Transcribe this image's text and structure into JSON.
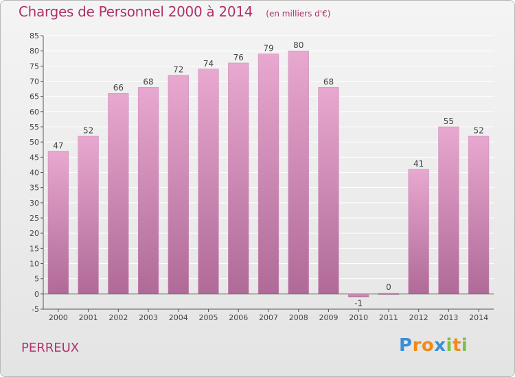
{
  "header": {
    "title": "Charges de Personnel 2000 à 2014",
    "subtitle": "(en milliers d'€)"
  },
  "footer": {
    "commune": "PERREUX",
    "logo_letters": [
      "P",
      "r",
      "o",
      "x",
      "i",
      "t",
      "i"
    ],
    "logo_colors": [
      "#3a8fd6",
      "#f08a1a",
      "#f08a1a",
      "#3a8fd6",
      "#7cc242",
      "#f08a1a",
      "#7cc242"
    ]
  },
  "chart_data": {
    "type": "bar",
    "categories": [
      "2000",
      "2001",
      "2002",
      "2003",
      "2004",
      "2005",
      "2006",
      "2007",
      "2008",
      "2009",
      "2010",
      "2011",
      "2012",
      "2013",
      "2014"
    ],
    "values": [
      47,
      52,
      66,
      68,
      72,
      74,
      76,
      79,
      80,
      68,
      -1,
      0,
      41,
      55,
      52
    ],
    "data_labels": [
      "47",
      "52",
      "66",
      "68",
      "72",
      "74",
      "76",
      "79",
      "80",
      "68",
      "-1",
      "0",
      "41",
      "55",
      "52"
    ],
    "ylim": [
      -5,
      85
    ],
    "yticks": [
      -5,
      0,
      5,
      10,
      15,
      20,
      25,
      30,
      35,
      40,
      45,
      50,
      55,
      60,
      65,
      70,
      75,
      80,
      85
    ],
    "grid": true,
    "colors": {
      "bar_top": "#e8a8cf",
      "bar_bottom": "#b06a98",
      "grid": "#ffffff",
      "axis": "#555555"
    }
  }
}
